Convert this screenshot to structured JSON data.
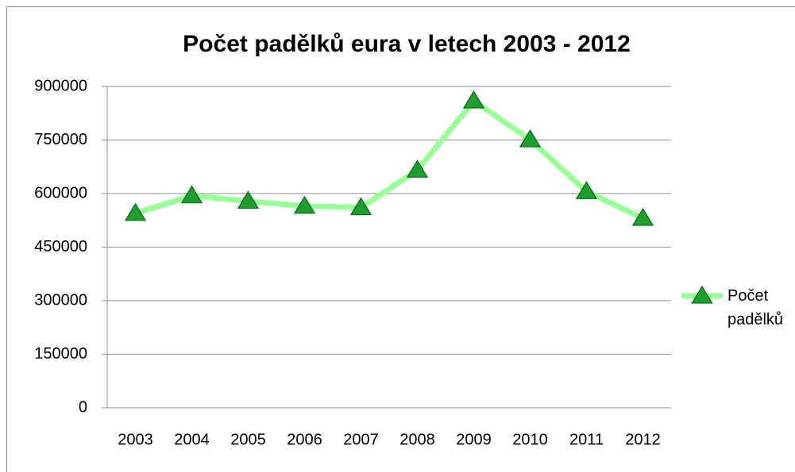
{
  "chart_data": {
    "type": "line",
    "title": "Počet padělků eura v letech 2003 - 2012",
    "categories": [
      "2003",
      "2004",
      "2005",
      "2006",
      "2007",
      "2008",
      "2009",
      "2010",
      "2011",
      "2012"
    ],
    "series": [
      {
        "name": "Počet padělků",
        "color": "#99ff99",
        "marker_color": "#1e9e2e",
        "values": [
          545000,
          594000,
          579000,
          565000,
          561000,
          666000,
          860000,
          751000,
          606000,
          531000
        ]
      }
    ],
    "ylim": [
      0,
      900000
    ],
    "yticks": [
      0,
      150000,
      300000,
      450000,
      600000,
      750000,
      900000
    ],
    "grid": true,
    "legend": "right"
  }
}
